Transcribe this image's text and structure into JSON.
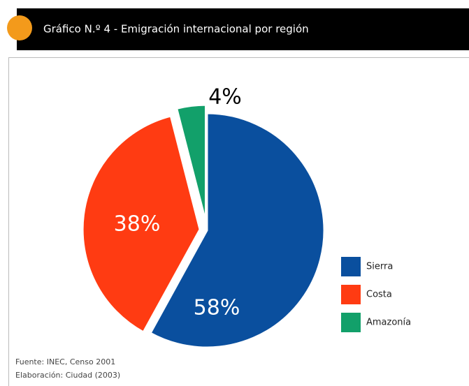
{
  "chart_data": {
    "type": "pie",
    "title": "Gráfico N.º 4 - Emigración internacional por región",
    "categories": [
      "Sierra",
      "Costa",
      "Amazonía"
    ],
    "values": [
      58,
      38,
      4
    ],
    "value_labels": [
      "58%",
      "38%",
      "4%"
    ],
    "colors": [
      "#0a4f9e",
      "#ff3b12",
      "#12a06a"
    ],
    "legend": "right",
    "footnotes": [
      "Fuente: INEC, Censo 2001",
      "Elaboración: Ciudad (2003)"
    ]
  }
}
